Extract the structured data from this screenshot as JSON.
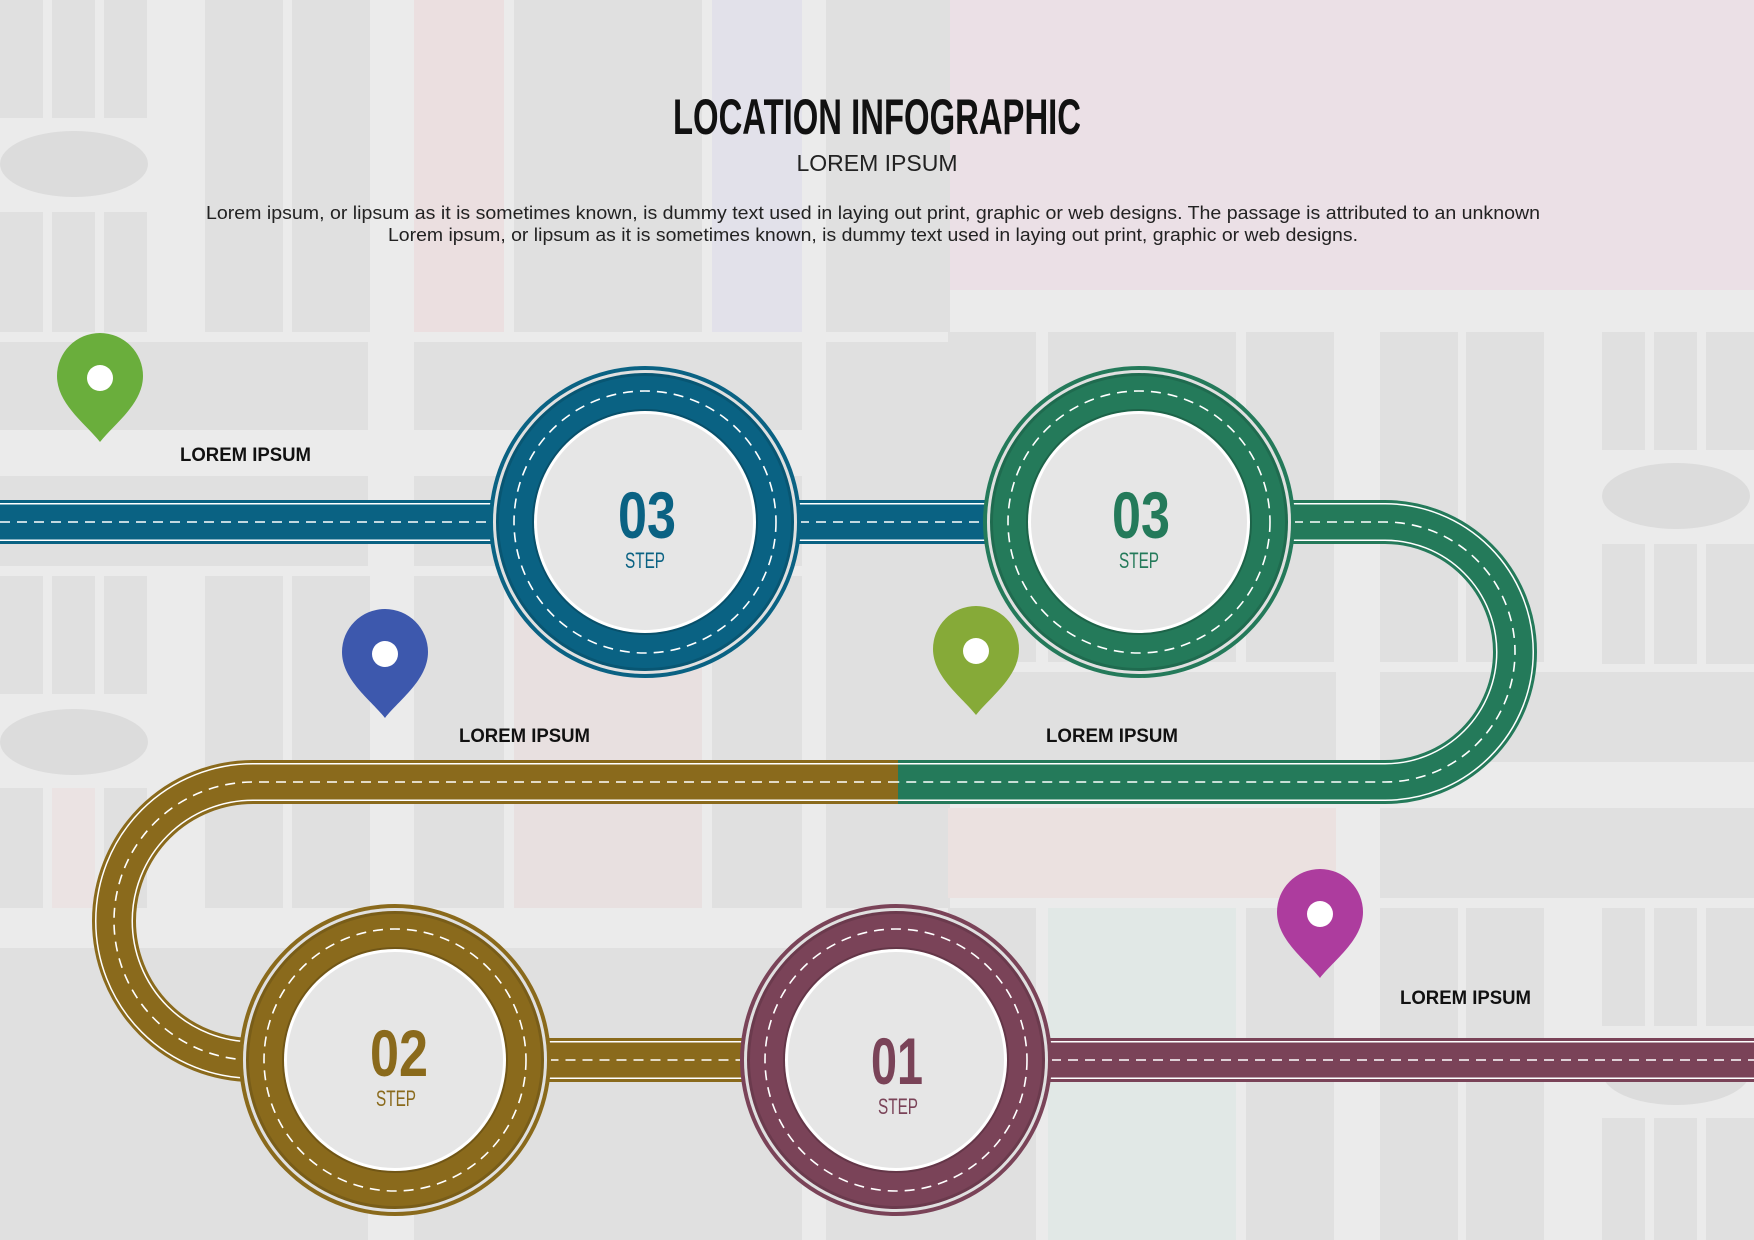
{
  "header": {
    "title": "LOCATION INFOGRAPHIC",
    "subtitle": "LOREM IPSUM",
    "description_line1": "Lorem ipsum, or lipsum as it is sometimes known, is dummy text used in laying out print, graphic or web designs. The passage is attributed to an unknown",
    "description_line2": "Lorem ipsum, or lipsum as it is sometimes known, is dummy text used in laying out print, graphic or web designs."
  },
  "colors": {
    "blue_road": "#0a6283",
    "green_road": "#247a5a",
    "gold_road": "#8a6a1c",
    "plum_road": "#7a4358",
    "pin_green": "#6aae3c",
    "pin_olive_green": "#86aa38",
    "pin_blue": "#3d58ad",
    "pin_magenta": "#ad3c9e",
    "background": "#ebebeb"
  },
  "steps": [
    {
      "number": "03",
      "label": "STEP",
      "color": "#0a6283"
    },
    {
      "number": "03",
      "label": "STEP",
      "color": "#247a5a"
    },
    {
      "number": "02",
      "label": "STEP",
      "color": "#8a6a1c"
    },
    {
      "number": "01",
      "label": "STEP",
      "color": "#7a4358"
    }
  ],
  "pins": [
    {
      "label": "LOREM IPSUM",
      "icon": "map-pin-icon",
      "color": "#6aae3c"
    },
    {
      "label": "LOREM IPSUM",
      "icon": "map-pin-icon",
      "color": "#3d58ad"
    },
    {
      "label": "LOREM IPSUM",
      "icon": "map-pin-icon",
      "color": "#86aa38"
    },
    {
      "label": "LOREM IPSUM",
      "icon": "map-pin-icon",
      "color": "#ad3c9e"
    }
  ]
}
